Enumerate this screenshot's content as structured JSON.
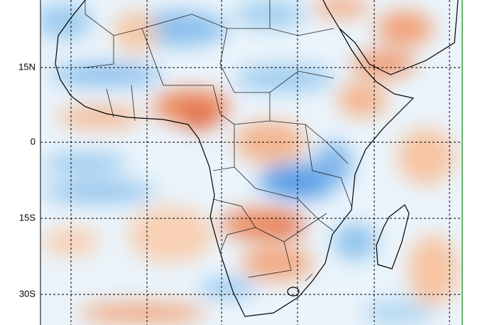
{
  "lat_labels": [
    "15N",
    "0",
    "15S",
    "30S"
  ]
}
